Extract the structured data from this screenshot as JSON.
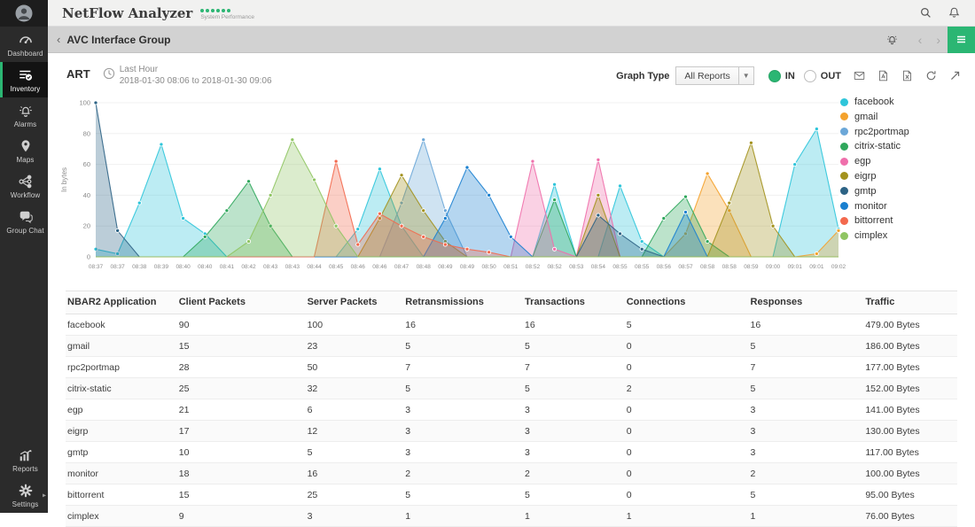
{
  "header": {
    "title": "NetFlow Analyzer",
    "subtitle": "System Performance",
    "dots_count": 6
  },
  "sidebar": {
    "items": [
      {
        "label": "Dashboard",
        "icon": "gauge-icon",
        "active": false,
        "section": "top"
      },
      {
        "label": "Inventory",
        "icon": "inventory-icon",
        "active": true,
        "section": "top"
      },
      {
        "label": "Alarms",
        "icon": "alarm-icon",
        "active": false,
        "section": "top"
      },
      {
        "label": "Maps",
        "icon": "map-pin-icon",
        "active": false,
        "section": "top"
      },
      {
        "label": "Workflow",
        "icon": "workflow-icon",
        "active": false,
        "section": "top"
      },
      {
        "label": "Group Chat",
        "icon": "chat-icon",
        "active": false,
        "section": "top"
      },
      {
        "label": "Reports",
        "icon": "reports-icon",
        "active": false,
        "section": "bottom"
      },
      {
        "label": "Settings",
        "icon": "settings-icon",
        "active": false,
        "section": "bottom"
      }
    ]
  },
  "breadcrumb": {
    "title": "AVC Interface Group"
  },
  "toolbar": {
    "report_title": "ART",
    "period_label": "Last Hour",
    "period_range": "2018-01-30 08:06 to 2018-01-30 09:06",
    "graph_type_label": "Graph Type",
    "graph_type_value": "All Reports",
    "in_label": "IN",
    "out_label": "OUT",
    "icons": [
      "mail-icon",
      "pdf-icon",
      "excel-icon",
      "refresh-icon",
      "pin-icon"
    ]
  },
  "accent_color": "#2bb673",
  "chart_data": {
    "type": "area",
    "title": "",
    "xlabel": "",
    "ylabel": "In bytes",
    "ylim": [
      0,
      100
    ],
    "yticks": [
      0,
      20,
      40,
      60,
      80,
      100
    ],
    "grid": true,
    "legend_position": "right",
    "x": [
      "08:37",
      "08:37",
      "08:38",
      "08:39",
      "08:40",
      "08:40",
      "08:41",
      "08:42",
      "08:43",
      "08:43",
      "08:44",
      "08:45",
      "08:46",
      "08:46",
      "08:47",
      "08:48",
      "08:49",
      "08:49",
      "08:50",
      "08:51",
      "08:52",
      "08:52",
      "08:53",
      "08:54",
      "08:55",
      "08:55",
      "08:56",
      "08:57",
      "08:58",
      "08:58",
      "08:59",
      "09:00",
      "09:01",
      "09:01",
      "09:02"
    ],
    "series": [
      {
        "name": "facebook",
        "color": "#2ec5da",
        "values": [
          5,
          2,
          35,
          73,
          25,
          15,
          0,
          0,
          0,
          0,
          0,
          0,
          18,
          57,
          20,
          0,
          0,
          0,
          0,
          0,
          0,
          47,
          0,
          0,
          46,
          10,
          0,
          0,
          0,
          0,
          0,
          0,
          60,
          83,
          18
        ]
      },
      {
        "name": "gmail",
        "color": "#f4a22d",
        "values": [
          0,
          0,
          0,
          0,
          0,
          0,
          0,
          0,
          0,
          0,
          0,
          0,
          0,
          0,
          0,
          0,
          0,
          0,
          0,
          0,
          0,
          0,
          0,
          0,
          0,
          0,
          0,
          15,
          54,
          30,
          0,
          0,
          0,
          2,
          17
        ]
      },
      {
        "name": "rpc2portmap",
        "color": "#6ba7d8",
        "values": [
          0,
          0,
          0,
          0,
          0,
          0,
          0,
          0,
          0,
          0,
          0,
          0,
          0,
          0,
          35,
          76,
          30,
          0,
          0,
          0,
          0,
          0,
          0,
          0,
          0,
          0,
          0,
          0,
          0,
          0,
          0,
          0,
          0,
          0,
          0
        ]
      },
      {
        "name": "citrix-static",
        "color": "#2fa75c",
        "values": [
          0,
          0,
          0,
          0,
          0,
          13,
          30,
          49,
          20,
          0,
          0,
          0,
          0,
          0,
          0,
          0,
          0,
          0,
          0,
          0,
          0,
          37,
          0,
          0,
          0,
          0,
          25,
          39,
          10,
          0,
          0,
          0,
          0,
          0,
          0
        ]
      },
      {
        "name": "egp",
        "color": "#ef6fab",
        "values": [
          0,
          0,
          0,
          0,
          0,
          0,
          0,
          0,
          0,
          0,
          0,
          0,
          0,
          0,
          0,
          0,
          0,
          0,
          0,
          0,
          62,
          5,
          0,
          63,
          0,
          0,
          0,
          0,
          0,
          0,
          0,
          0,
          0,
          0,
          0
        ]
      },
      {
        "name": "eigrp",
        "color": "#a3921e",
        "values": [
          0,
          0,
          0,
          0,
          0,
          0,
          0,
          0,
          0,
          0,
          0,
          0,
          0,
          25,
          53,
          30,
          10,
          0,
          0,
          0,
          0,
          0,
          0,
          40,
          0,
          0,
          0,
          0,
          0,
          35,
          74,
          20,
          0,
          0,
          0
        ]
      },
      {
        "name": "gmtp",
        "color": "#2d6385",
        "values": [
          100,
          17,
          0,
          0,
          0,
          0,
          0,
          0,
          0,
          0,
          0,
          0,
          0,
          0,
          0,
          0,
          0,
          0,
          0,
          0,
          0,
          0,
          0,
          27,
          15,
          5,
          0,
          0,
          0,
          0,
          0,
          0,
          0,
          0,
          0
        ]
      },
      {
        "name": "monitor",
        "color": "#1a80d0",
        "values": [
          0,
          0,
          0,
          0,
          0,
          0,
          0,
          0,
          0,
          0,
          0,
          0,
          0,
          0,
          0,
          0,
          25,
          58,
          40,
          13,
          0,
          0,
          0,
          0,
          0,
          0,
          0,
          29,
          0,
          0,
          0,
          0,
          0,
          0,
          0
        ]
      },
      {
        "name": "bittorrent",
        "color": "#f3694e",
        "values": [
          0,
          0,
          0,
          0,
          0,
          0,
          0,
          0,
          0,
          0,
          0,
          62,
          8,
          28,
          20,
          13,
          8,
          5,
          3,
          0,
          0,
          0,
          0,
          0,
          0,
          0,
          0,
          0,
          0,
          0,
          0,
          0,
          0,
          0,
          0
        ]
      },
      {
        "name": "cimplex",
        "color": "#90c563",
        "values": [
          0,
          0,
          0,
          0,
          0,
          0,
          0,
          10,
          40,
          76,
          50,
          20,
          0,
          0,
          0,
          0,
          0,
          0,
          0,
          0,
          0,
          0,
          0,
          0,
          0,
          0,
          0,
          0,
          0,
          0,
          0,
          0,
          0,
          0,
          0
        ]
      }
    ]
  },
  "table": {
    "columns": [
      "NBAR2 Application",
      "Client Packets",
      "Server Packets",
      "Retransmissions",
      "Transactions",
      "Connections",
      "Responses",
      "Traffic"
    ],
    "rows": [
      [
        "facebook",
        "90",
        "100",
        "16",
        "16",
        "5",
        "16",
        "479.00 Bytes"
      ],
      [
        "gmail",
        "15",
        "23",
        "5",
        "5",
        "0",
        "5",
        "186.00 Bytes"
      ],
      [
        "rpc2portmap",
        "28",
        "50",
        "7",
        "7",
        "0",
        "7",
        "177.00 Bytes"
      ],
      [
        "citrix-static",
        "25",
        "32",
        "5",
        "5",
        "2",
        "5",
        "152.00 Bytes"
      ],
      [
        "egp",
        "21",
        "6",
        "3",
        "3",
        "0",
        "3",
        "141.00 Bytes"
      ],
      [
        "eigrp",
        "17",
        "12",
        "3",
        "3",
        "0",
        "3",
        "130.00 Bytes"
      ],
      [
        "gmtp",
        "10",
        "5",
        "3",
        "3",
        "0",
        "3",
        "117.00 Bytes"
      ],
      [
        "monitor",
        "18",
        "16",
        "2",
        "2",
        "0",
        "2",
        "100.00 Bytes"
      ],
      [
        "bittorrent",
        "15",
        "25",
        "5",
        "5",
        "0",
        "5",
        "95.00 Bytes"
      ],
      [
        "cimplex",
        "9",
        "3",
        "1",
        "1",
        "1",
        "1",
        "76.00 Bytes"
      ]
    ]
  }
}
